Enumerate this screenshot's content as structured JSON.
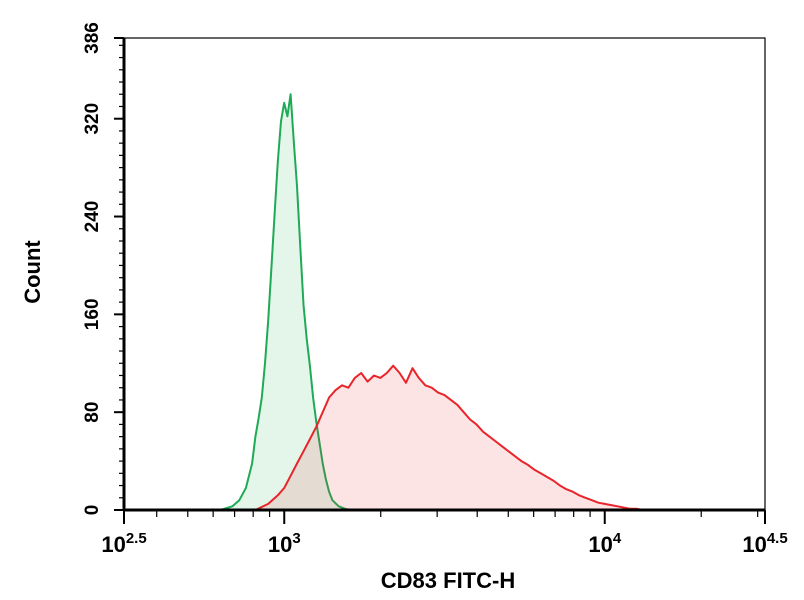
{
  "chart_data": {
    "type": "area",
    "xlabel": "CD83 FITC-H",
    "ylabel": "Count",
    "x_scale": "log10",
    "xlim": [
      316.23,
      31622.78
    ],
    "ylim": [
      0,
      386
    ],
    "x_ticks": [
      {
        "base": "10",
        "exp": "2.5",
        "value": 316.23
      },
      {
        "base": "10",
        "exp": "3",
        "value": 1000
      },
      {
        "base": "10",
        "exp": "4",
        "value": 10000
      },
      {
        "base": "10",
        "exp": "4.5",
        "value": 31622.78
      }
    ],
    "y_ticks": [
      {
        "label": "0",
        "value": 0
      },
      {
        "label": "80",
        "value": 80
      },
      {
        "label": "160",
        "value": 160
      },
      {
        "label": "240",
        "value": 240
      },
      {
        "label": "320",
        "value": 320
      },
      {
        "label": "386",
        "value": 386
      }
    ],
    "grid": false,
    "legend": "none",
    "series": [
      {
        "color": "#1faa55",
        "fill": "#1faa55",
        "x": [
          631,
          689,
          724,
          759,
          794,
          813,
          832,
          851,
          871,
          891,
          912,
          933,
          955,
          977,
          1000,
          1023,
          1047,
          1072,
          1096,
          1122,
          1148,
          1175,
          1202,
          1230,
          1259,
          1288,
          1318,
          1349,
          1380,
          1413,
          1479,
          1549,
          1622
        ],
        "y": [
          0,
          3,
          8,
          18,
          38,
          60,
          75,
          92,
          120,
          155,
          198,
          242,
          285,
          318,
          333,
          322,
          340,
          300,
          265,
          215,
          168,
          140,
          118,
          92,
          72,
          55,
          38,
          25,
          15,
          8,
          3,
          1,
          0
        ]
      },
      {
        "color": "#e8252a",
        "fill": "#e8252a",
        "x": [
          813,
          891,
          955,
          1000,
          1047,
          1096,
          1148,
          1202,
          1259,
          1318,
          1380,
          1445,
          1514,
          1585,
          1660,
          1738,
          1820,
          1905,
          1995,
          2089,
          2188,
          2291,
          2399,
          2512,
          2630,
          2754,
          2884,
          3020,
          3162,
          3311,
          3467,
          3631,
          3802,
          3981,
          4169,
          4365,
          4571,
          4786,
          5012,
          5248,
          5495,
          5754,
          6026,
          6310,
          6607,
          6918,
          7244,
          7586,
          7943,
          8318,
          8710,
          9120,
          9550,
          10000,
          10471,
          10965,
          11482,
          12023,
          12589,
          13183,
          14125
        ],
        "y": [
          0,
          5,
          12,
          18,
          28,
          38,
          48,
          58,
          68,
          80,
          92,
          98,
          102,
          100,
          108,
          112,
          105,
          110,
          108,
          112,
          118,
          112,
          104,
          116,
          108,
          102,
          100,
          96,
          94,
          90,
          86,
          80,
          74,
          70,
          64,
          60,
          56,
          52,
          48,
          44,
          40,
          37,
          33,
          30,
          27,
          24,
          20,
          17,
          15,
          12,
          10,
          8,
          6,
          5,
          4,
          3,
          2,
          1,
          1,
          0,
          0
        ]
      }
    ]
  }
}
